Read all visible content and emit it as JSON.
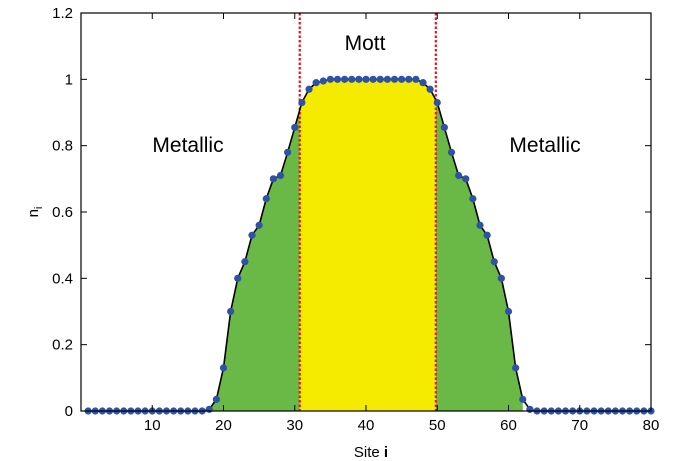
{
  "chart_data": {
    "type": "line",
    "xlabel": {
      "prefix": "Site ",
      "var": "i"
    },
    "ylabel": {
      "base": "n",
      "sub": "i"
    },
    "xlim": [
      0,
      80
    ],
    "ylim": [
      0,
      1.2
    ],
    "xticks": [
      10,
      20,
      30,
      40,
      50,
      60,
      70,
      80
    ],
    "yticks": [
      0,
      0.2,
      0.4,
      0.6,
      0.8,
      1,
      1.2
    ],
    "ytick_labels": [
      "0",
      "0.2",
      "0.4",
      "0.6",
      "0.8",
      "1",
      "1.2"
    ],
    "grid": false,
    "boundaries": [
      30.7,
      49.8
    ],
    "regions": [
      {
        "label": "Metallic",
        "fill": "#6ab845",
        "range": [
          18,
          30.7
        ]
      },
      {
        "label": "Mott",
        "fill": "#f5eb00",
        "range": [
          30.7,
          49.8
        ]
      },
      {
        "label": "Metallic",
        "fill": "#6ab845",
        "range": [
          49.8,
          62
        ]
      }
    ],
    "annotations": [
      "Metallic",
      "Mott",
      "Metallic"
    ],
    "series": [
      {
        "marker_color": "#2e53a6",
        "line_color": "#000000",
        "x": [
          1,
          2,
          3,
          4,
          5,
          6,
          7,
          8,
          9,
          10,
          11,
          12,
          13,
          14,
          15,
          16,
          17,
          18,
          19,
          20,
          21,
          22,
          23,
          24,
          25,
          26,
          27,
          28,
          29,
          30,
          31,
          32,
          33,
          34,
          35,
          36,
          37,
          38,
          39,
          40,
          41,
          42,
          43,
          44,
          45,
          46,
          47,
          48,
          49,
          50,
          51,
          52,
          53,
          54,
          55,
          56,
          57,
          58,
          59,
          60,
          61,
          62,
          63,
          64,
          65,
          66,
          67,
          68,
          69,
          70,
          71,
          72,
          73,
          74,
          75,
          76,
          77,
          78,
          79,
          80
        ],
        "y": [
          0,
          0,
          0,
          0,
          0,
          0,
          0,
          0,
          0,
          0,
          0,
          0,
          0,
          0,
          0,
          0,
          0,
          0.005,
          0.035,
          0.13,
          0.3,
          0.4,
          0.45,
          0.53,
          0.56,
          0.64,
          0.7,
          0.71,
          0.78,
          0.855,
          0.93,
          0.97,
          0.99,
          0.995,
          1,
          1,
          1,
          1,
          1,
          1,
          1,
          1,
          1,
          1,
          1,
          1,
          1,
          0.99,
          0.97,
          0.93,
          0.855,
          0.78,
          0.71,
          0.7,
          0.64,
          0.56,
          0.53,
          0.45,
          0.4,
          0.3,
          0.13,
          0.035,
          0.005,
          0,
          0,
          0,
          0,
          0,
          0,
          0,
          0,
          0,
          0,
          0,
          0,
          0,
          0,
          0,
          0,
          0
        ]
      }
    ]
  }
}
